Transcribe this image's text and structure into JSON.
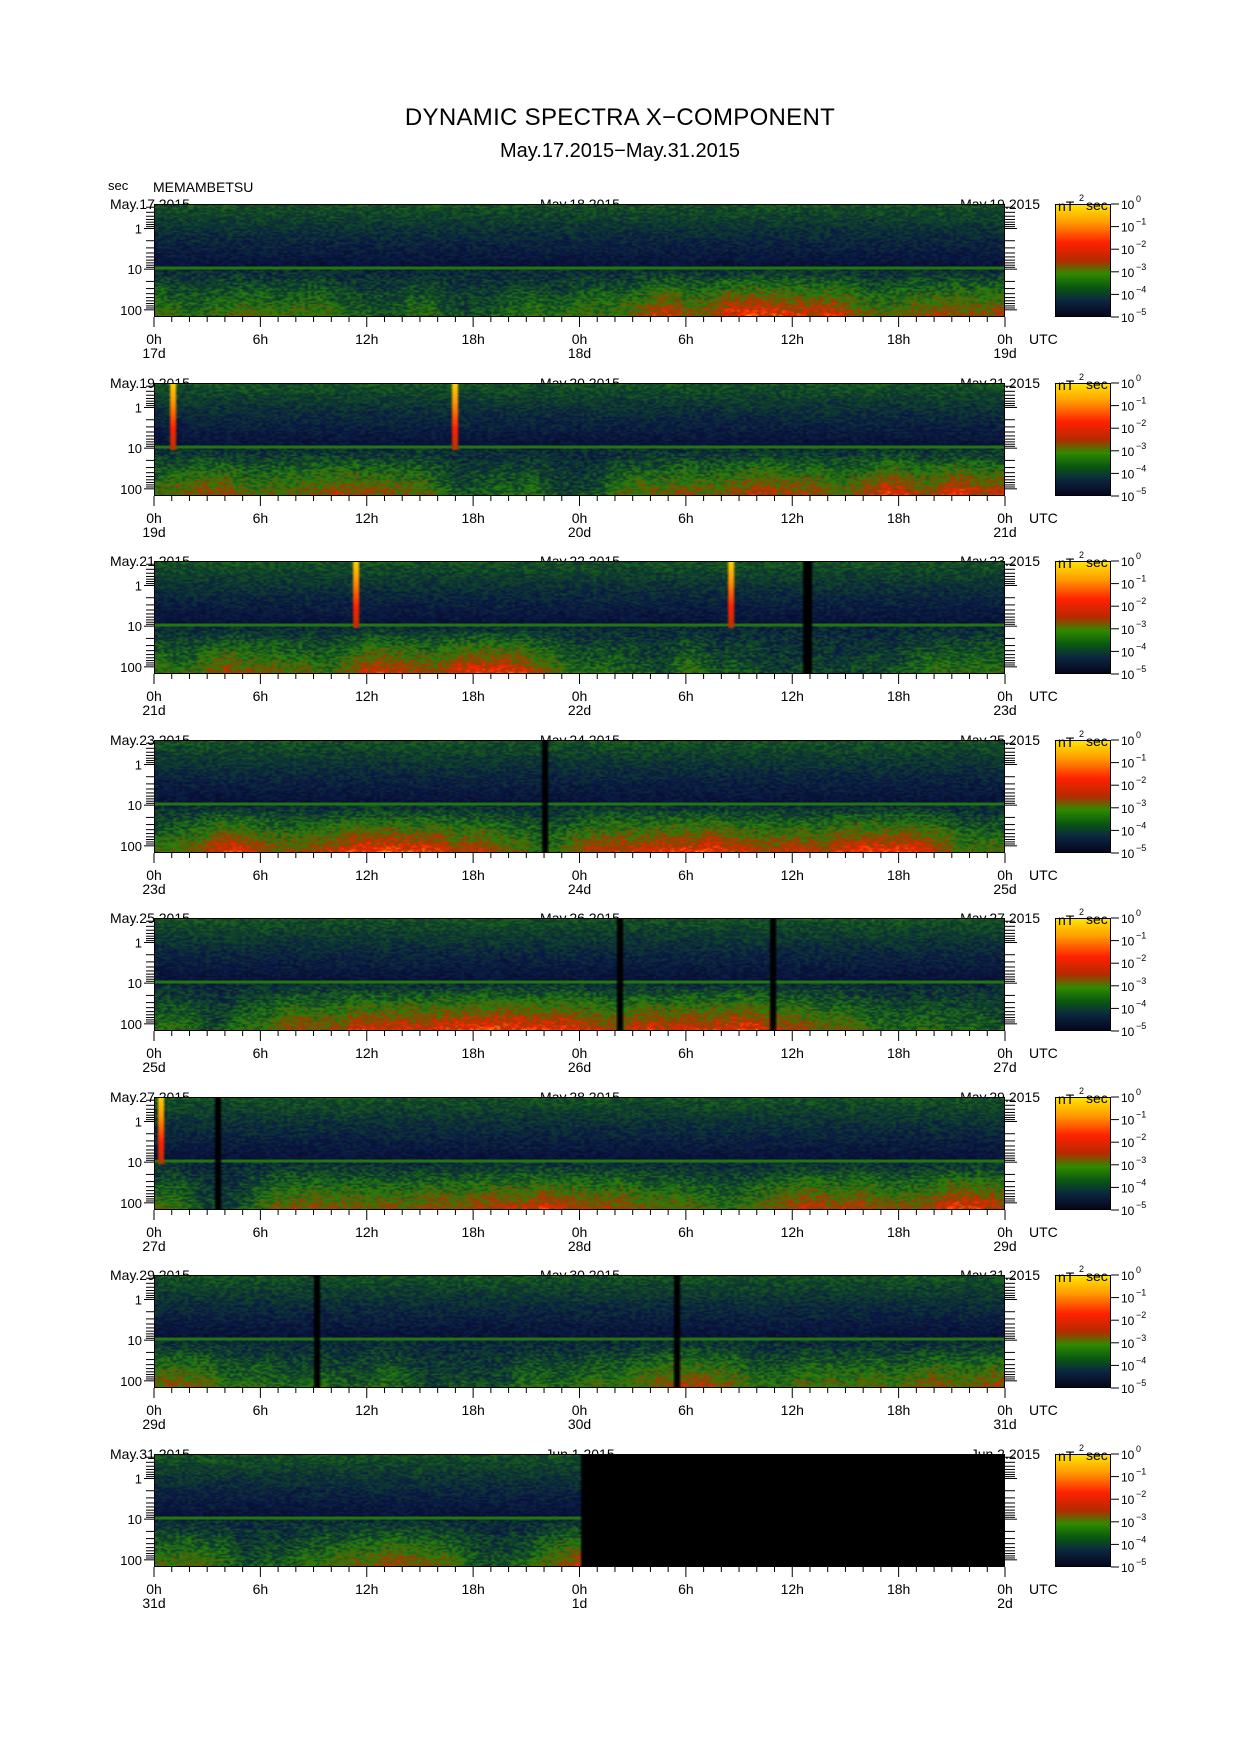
{
  "title": "DYNAMIC SPECTRA X−COMPONENT",
  "subtitle": "May.17.2015−May.31.2015",
  "yunit": "sec",
  "station": "MEMAMBETSU",
  "cbar_unit_base": "nT",
  "cbar_unit_exp": "2",
  "cbar_unit_tail": "sec",
  "utc_label": "UTC",
  "colors": {
    "low": "#05061c",
    "mid": "#2f8a00",
    "high": "#ff2000",
    "max": "#ffe400"
  },
  "chart_data": [
    {
      "type": "heatmap",
      "title": "",
      "left_date": "May.17.2015",
      "mid_date": "May.18.2015",
      "right_date": "May.19.2015",
      "xticks": [
        "0h",
        "6h",
        "12h",
        "18h",
        "0h",
        "6h",
        "12h",
        "18h",
        "0h"
      ],
      "day_labels": [
        "17d",
        "18d",
        "19d"
      ],
      "yticks": [
        "1",
        "10",
        "100"
      ],
      "ylabel": "sec",
      "ylog": true,
      "yrange_sec": [
        0.25,
        150
      ],
      "cbar_ticks": [
        "10^0",
        "10^-1",
        "10^-2",
        "10^-3",
        "10^-4",
        "10^-5"
      ],
      "cbar_range": [
        -5,
        0
      ],
      "spikes_h": [],
      "gaps_h": [],
      "nodata_from_h": null
    },
    {
      "type": "heatmap",
      "title": "",
      "left_date": "May.19.2015",
      "mid_date": "May.20.2015",
      "right_date": "May.21.2015",
      "xticks": [
        "0h",
        "6h",
        "12h",
        "18h",
        "0h",
        "6h",
        "12h",
        "18h",
        "0h"
      ],
      "day_labels": [
        "19d",
        "20d",
        "21d"
      ],
      "yticks": [
        "1",
        "10",
        "100"
      ],
      "ylabel": "sec",
      "ylog": true,
      "yrange_sec": [
        0.25,
        150
      ],
      "cbar_ticks": [
        "10^0",
        "10^-1",
        "10^-2",
        "10^-3",
        "10^-4",
        "10^-5"
      ],
      "cbar_range": [
        -5,
        0
      ],
      "spikes_h": [
        1.0,
        16.9
      ],
      "gaps_h": [],
      "nodata_from_h": null
    },
    {
      "type": "heatmap",
      "title": "",
      "left_date": "May.21.2015",
      "mid_date": "May.22.2015",
      "right_date": "May.23.2015",
      "xticks": [
        "0h",
        "6h",
        "12h",
        "18h",
        "0h",
        "6h",
        "12h",
        "18h",
        "0h"
      ],
      "day_labels": [
        "21d",
        "22d",
        "23d"
      ],
      "yticks": [
        "1",
        "10",
        "100"
      ],
      "ylabel": "sec",
      "ylog": true,
      "yrange_sec": [
        0.25,
        150
      ],
      "cbar_ticks": [
        "10^0",
        "10^-1",
        "10^-2",
        "10^-3",
        "10^-4",
        "10^-5"
      ],
      "cbar_range": [
        -5,
        0
      ],
      "spikes_h": [
        11.3,
        32.5
      ],
      "gaps_h": [
        36.8
      ],
      "nodata_from_h": null
    },
    {
      "type": "heatmap",
      "title": "",
      "left_date": "May.23.2015",
      "mid_date": "May.24.2015",
      "right_date": "May.25.2015",
      "xticks": [
        "0h",
        "6h",
        "12h",
        "18h",
        "0h",
        "6h",
        "12h",
        "18h",
        "0h"
      ],
      "day_labels": [
        "23d",
        "24d",
        "25d"
      ],
      "yticks": [
        "1",
        "10",
        "100"
      ],
      "ylabel": "sec",
      "ylog": true,
      "yrange_sec": [
        0.25,
        150
      ],
      "cbar_ticks": [
        "10^0",
        "10^-1",
        "10^-2",
        "10^-3",
        "10^-4",
        "10^-5"
      ],
      "cbar_range": [
        -5,
        0
      ],
      "spikes_h": [],
      "gaps_h": [
        22.0
      ],
      "nodata_from_h": null
    },
    {
      "type": "heatmap",
      "title": "",
      "left_date": "May.25.2015",
      "mid_date": "May.26.2015",
      "right_date": "May.27.2015",
      "xticks": [
        "0h",
        "6h",
        "12h",
        "18h",
        "0h",
        "6h",
        "12h",
        "18h",
        "0h"
      ],
      "day_labels": [
        "25d",
        "26d",
        "27d"
      ],
      "yticks": [
        "1",
        "10",
        "100"
      ],
      "ylabel": "sec",
      "ylog": true,
      "yrange_sec": [
        0.25,
        150
      ],
      "cbar_ticks": [
        "10^0",
        "10^-1",
        "10^-2",
        "10^-3",
        "10^-4",
        "10^-5"
      ],
      "cbar_range": [
        -5,
        0
      ],
      "spikes_h": [],
      "gaps_h": [
        26.2,
        34.9
      ],
      "nodata_from_h": null
    },
    {
      "type": "heatmap",
      "title": "",
      "left_date": "May.27.2015",
      "mid_date": "May.28.2015",
      "right_date": "May.29.2015",
      "xticks": [
        "0h",
        "6h",
        "12h",
        "18h",
        "0h",
        "6h",
        "12h",
        "18h",
        "0h"
      ],
      "day_labels": [
        "27d",
        "28d",
        "29d"
      ],
      "yticks": [
        "1",
        "10",
        "100"
      ],
      "ylabel": "sec",
      "ylog": true,
      "yrange_sec": [
        0.25,
        150
      ],
      "cbar_ticks": [
        "10^0",
        "10^-1",
        "10^-2",
        "10^-3",
        "10^-4",
        "10^-5"
      ],
      "cbar_range": [
        -5,
        0
      ],
      "spikes_h": [
        0.3
      ],
      "gaps_h": [
        3.5
      ],
      "nodata_from_h": null
    },
    {
      "type": "heatmap",
      "title": "",
      "left_date": "May.29.2015",
      "mid_date": "May.30.2015",
      "right_date": "May.31.2015",
      "xticks": [
        "0h",
        "6h",
        "12h",
        "18h",
        "0h",
        "6h",
        "12h",
        "18h",
        "0h"
      ],
      "day_labels": [
        "29d",
        "30d",
        "31d"
      ],
      "yticks": [
        "1",
        "10",
        "100"
      ],
      "ylabel": "sec",
      "ylog": true,
      "yrange_sec": [
        0.25,
        150
      ],
      "cbar_ticks": [
        "10^0",
        "10^-1",
        "10^-2",
        "10^-3",
        "10^-4",
        "10^-5"
      ],
      "cbar_range": [
        -5,
        0
      ],
      "spikes_h": [],
      "gaps_h": [
        9.0,
        29.5
      ],
      "nodata_from_h": null
    },
    {
      "type": "heatmap",
      "title": "",
      "left_date": "May.31.2015",
      "mid_date": "Jun.1.2015",
      "right_date": "Jun.2.2015",
      "xticks": [
        "0h",
        "6h",
        "12h",
        "18h",
        "0h",
        "6h",
        "12h",
        "18h",
        "0h"
      ],
      "day_labels": [
        "31d",
        "1d",
        "2d"
      ],
      "yticks": [
        "1",
        "10",
        "100"
      ],
      "ylabel": "sec",
      "ylog": true,
      "yrange_sec": [
        0.25,
        150
      ],
      "cbar_ticks": [
        "10^0",
        "10^-1",
        "10^-2",
        "10^-3",
        "10^-4",
        "10^-5"
      ],
      "cbar_range": [
        -5,
        0
      ],
      "spikes_h": [],
      "gaps_h": [],
      "nodata_from_h": 24.0
    }
  ]
}
